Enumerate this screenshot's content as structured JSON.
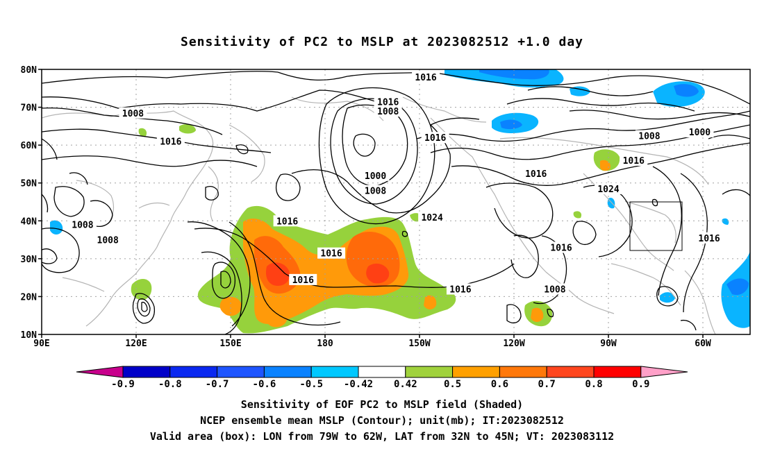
{
  "title": "Sensitivity of PC2 to MSLP at 2023082512 +1.0 day",
  "captions": {
    "line1": "Sensitivity of EOF PC2 to MSLP field (Shaded)",
    "line2": "NCEP ensemble mean MSLP (Contour); unit(mb); IT:2023082512",
    "line3": "Valid area (box): LON from 79W to 62W, LAT from 32N to 45N; VT: 2023083112"
  },
  "map": {
    "lat_labels": [
      "80N",
      "70N",
      "60N",
      "50N",
      "40N",
      "30N",
      "20N",
      "10N"
    ],
    "lon_labels": [
      "90E",
      "120E",
      "150E",
      "180",
      "150W",
      "120W",
      "90W",
      "60W"
    ],
    "lat_values": [
      80,
      70,
      60,
      50,
      40,
      30,
      20,
      10
    ],
    "lon_values": [
      90,
      120,
      150,
      180,
      210,
      240,
      270,
      300
    ],
    "lon_range": [
      90,
      315
    ],
    "lat_range": [
      10,
      80
    ],
    "valid_box": {
      "lon_from": -79,
      "lon_to": -62,
      "lat_from": 32,
      "lat_to": 45
    }
  },
  "contour_labels": [
    {
      "text": "1016",
      "lon": 212,
      "lat": 78
    },
    {
      "text": "1016",
      "lon": 200,
      "lat": 71.5
    },
    {
      "text": "1008",
      "lon": 200,
      "lat": 69
    },
    {
      "text": "1008",
      "lon": 119,
      "lat": 68.5
    },
    {
      "text": "1016",
      "lon": 131,
      "lat": 61
    },
    {
      "text": "1016",
      "lon": 215,
      "lat": 62
    },
    {
      "text": "1008",
      "lon": 283,
      "lat": 62.5
    },
    {
      "text": "1000",
      "lon": 299,
      "lat": 63.5
    },
    {
      "text": "1016",
      "lon": 278,
      "lat": 56
    },
    {
      "text": "1000",
      "lon": 196,
      "lat": 52
    },
    {
      "text": "1016",
      "lon": 247,
      "lat": 52.5
    },
    {
      "text": "1008",
      "lon": 196,
      "lat": 48
    },
    {
      "text": "1024",
      "lon": 270,
      "lat": 48.5
    },
    {
      "text": "1024",
      "lon": 214,
      "lat": 41
    },
    {
      "text": "1008",
      "lon": 103,
      "lat": 39
    },
    {
      "text": "1016",
      "lon": 168,
      "lat": 40
    },
    {
      "text": "1016",
      "lon": 302,
      "lat": 35.5
    },
    {
      "text": "1008",
      "lon": 111,
      "lat": 35
    },
    {
      "text": "1016",
      "lon": 255,
      "lat": 33
    },
    {
      "text": "1016",
      "lon": 182,
      "lat": 31.5
    },
    {
      "text": "1016",
      "lon": 173,
      "lat": 24.5
    },
    {
      "text": "1016",
      "lon": 223,
      "lat": 22
    },
    {
      "text": "1008",
      "lon": 253,
      "lat": 22
    }
  ],
  "colorbar": {
    "labels": [
      "-0.9",
      "-0.8",
      "-0.7",
      "-0.6",
      "-0.5",
      "-0.42",
      "0.42",
      "0.5",
      "0.6",
      "0.7",
      "0.8",
      "0.9"
    ],
    "colors": [
      "#0000c8",
      "#0a28f0",
      "#1e55ff",
      "#0a82ff",
      "#00c8ff",
      "#ffffff",
      "#a0d23c",
      "#ffa000",
      "#ff780a",
      "#ff461e",
      "#ff0000"
    ],
    "low_extend_color": "#c8008c",
    "high_extend_color": "#ffa0c8"
  },
  "shading_colors": {
    "green": "#96d23c",
    "orange": "#ff9a0a",
    "dark_orange": "#ff6a0a",
    "red_orange": "#ff4014",
    "light_blue": "#0ab4ff",
    "blue": "#0a82ff",
    "dark_blue": "#0a46f0"
  }
}
